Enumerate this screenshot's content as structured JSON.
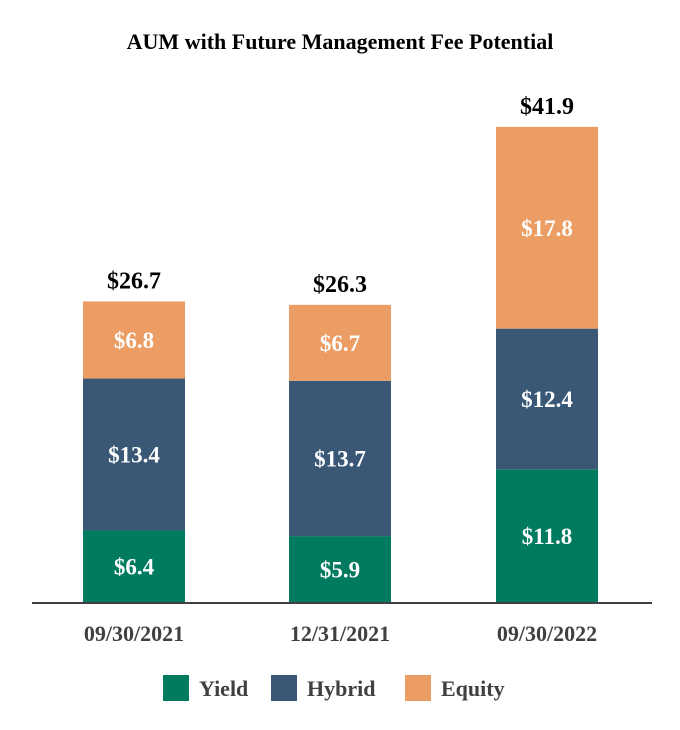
{
  "chart_data": {
    "type": "bar",
    "stacked": true,
    "title": "AUM with Future Management Fee Potential",
    "categories": [
      "09/30/2021",
      "12/31/2021",
      "09/30/2022"
    ],
    "series": [
      {
        "name": "Yield",
        "color": "#007B5F",
        "values": [
          6.4,
          5.9,
          11.8
        ],
        "labels": [
          "$6.4",
          "$5.9",
          "$11.8"
        ]
      },
      {
        "name": "Hybrid",
        "color": "#3A5776",
        "values": [
          13.4,
          13.7,
          12.4
        ],
        "labels": [
          "$13.4",
          "$13.7",
          "$12.4"
        ]
      },
      {
        "name": "Equity",
        "color": "#EC9D63",
        "values": [
          6.8,
          6.7,
          17.8
        ],
        "labels": [
          "$6.8",
          "$6.7",
          "$17.8"
        ]
      }
    ],
    "totals": [
      26.7,
      26.3,
      41.9
    ],
    "total_labels": [
      "$26.7",
      "$26.3",
      "$41.9"
    ],
    "ylim": [
      0,
      44
    ],
    "xlabel": "",
    "ylabel": "",
    "grid": false,
    "legend_position": "bottom"
  },
  "colors": {
    "axis": "#404040",
    "segment_text": "#FFFFFF"
  }
}
